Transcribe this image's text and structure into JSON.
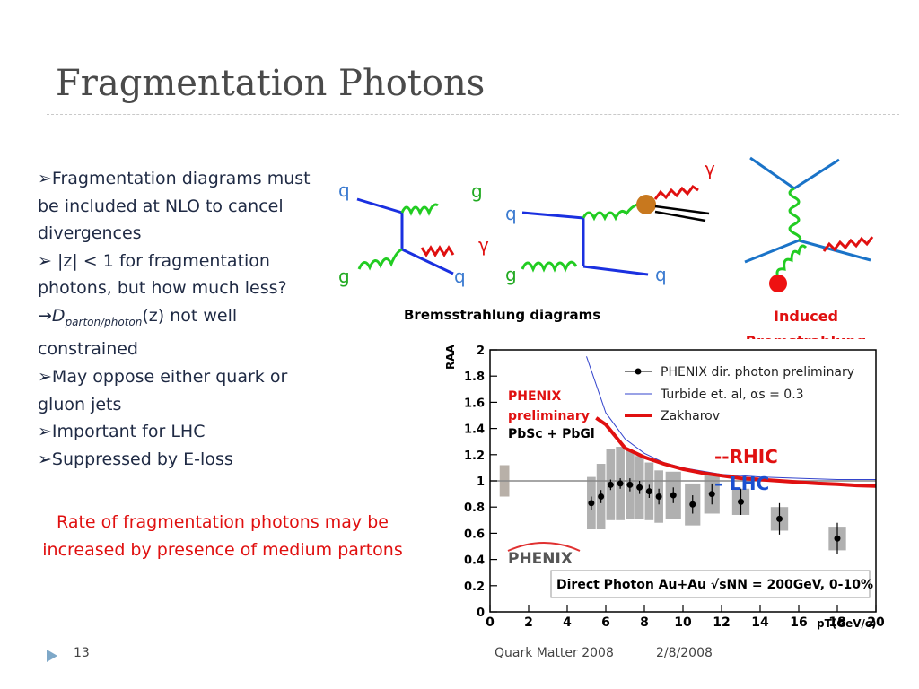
{
  "slide": {
    "title": "Fragmentation Photons",
    "bullets": [
      {
        "text": "Fragmentation diagrams must be included at NLO to cancel divergences"
      },
      {
        "text": " |z| < 1 for  fragmentation photons,  but how much less?"
      },
      {
        "text_pre": "D",
        "sub": "parton/photon",
        "text_post": "(z) not well constrained"
      },
      {
        "text": "May oppose either quark or gluon jets"
      },
      {
        "text": "Important for LHC"
      },
      {
        "text": "Suppressed by E-loss"
      }
    ],
    "callout": "Rate of fragmentation photons may be increased by presence of medium partons",
    "diagram_caption": "Bremsstrahlung diagrams",
    "induced_label": "Induced Bremstrahlung",
    "feynman_labels": {
      "q": "q",
      "g": "g",
      "gamma": "γ"
    },
    "footer": {
      "page": "13",
      "event": "Quark Matter 2008",
      "date": "2/8/2008"
    }
  },
  "chart_data": {
    "type": "scatter",
    "title": "",
    "xlabel": "pT(GeV/c)",
    "ylabel": "RAA",
    "xlim": [
      0,
      20
    ],
    "ylim": [
      0,
      2
    ],
    "x_ticks": [
      "0",
      "2",
      "4",
      "6",
      "8",
      "10",
      "12",
      "14",
      "16",
      "18",
      "20"
    ],
    "y_ticks": [
      "0",
      "0.2",
      "0.4",
      "0.6",
      "0.8",
      "1",
      "1.2",
      "1.4",
      "1.6",
      "1.8",
      "2"
    ],
    "legend": [
      {
        "name": "PHENIX dir. photon preliminary",
        "marker": "dot-errorbar",
        "color": "#000000"
      },
      {
        "name": "Turbide et. al, αs = 0.3",
        "color": "#3344cc"
      },
      {
        "name": "Zakharov",
        "color": "#e01010"
      }
    ],
    "annotations": {
      "phenix_label": "PHENIX",
      "preliminary_label": "preliminary",
      "detector_label": "PbSc + PbGl",
      "rhic_label": "--RHIC",
      "lhc_label": "– LHC",
      "bottom_box": "Direct Photon Au+Au √sNN = 200GeV, 0-10%",
      "logo": "PHENIX"
    },
    "series": [
      {
        "name": "PHENIX dir. photon preliminary",
        "x": [
          5.25,
          5.75,
          6.25,
          6.75,
          7.25,
          7.75,
          8.25,
          8.75,
          9.5,
          10.5,
          11.5,
          13.0,
          15.0,
          18.0
        ],
        "y": [
          0.83,
          0.88,
          0.97,
          0.98,
          0.97,
          0.95,
          0.92,
          0.88,
          0.89,
          0.82,
          0.9,
          0.84,
          0.71,
          0.56
        ],
        "err": [
          0.05,
          0.05,
          0.04,
          0.04,
          0.05,
          0.05,
          0.05,
          0.06,
          0.06,
          0.07,
          0.08,
          0.1,
          0.12,
          0.12
        ],
        "sys": [
          0.2,
          0.25,
          0.27,
          0.28,
          0.26,
          0.24,
          0.22,
          0.2,
          0.18,
          0.16,
          0.15,
          0.1,
          0.09,
          0.09
        ]
      },
      {
        "name": "Turbide et. al, αs = 0.3",
        "x": [
          5,
          6,
          7,
          8,
          9,
          10,
          12,
          14,
          16,
          18,
          20
        ],
        "y": [
          1.95,
          1.52,
          1.32,
          1.21,
          1.14,
          1.1,
          1.05,
          1.03,
          1.02,
          1.01,
          1.01
        ]
      },
      {
        "name": "Zakharov",
        "x": [
          5.5,
          6,
          7,
          8,
          9,
          10,
          11,
          12,
          13,
          14,
          15,
          16,
          17,
          18,
          19,
          20
        ],
        "y": [
          1.48,
          1.43,
          1.25,
          1.18,
          1.13,
          1.09,
          1.06,
          1.04,
          1.02,
          1.01,
          1.0,
          0.99,
          0.98,
          0.975,
          0.965,
          0.96
        ]
      }
    ],
    "reference_line": 1.0
  }
}
